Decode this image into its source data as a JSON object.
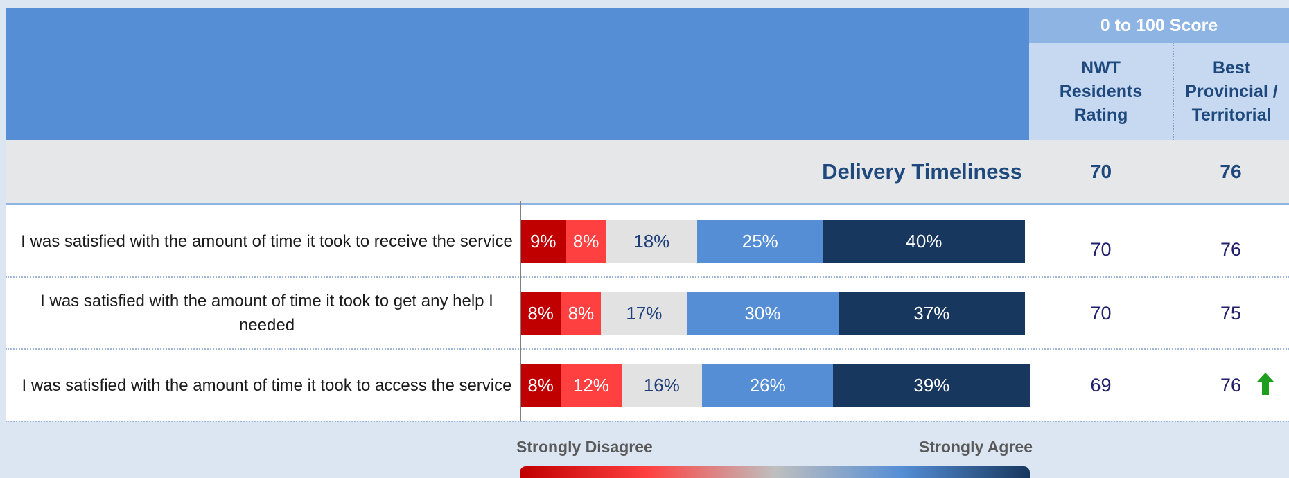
{
  "chart_data": {
    "type": "bar",
    "orientation": "horizontal",
    "stacked": true,
    "section_title": "Delivery Timeliness",
    "score_header": "0 to 100 Score",
    "score_columns": [
      "NWT Residents Rating",
      "Best Provincial / Territorial"
    ],
    "section_scores": [
      70,
      76
    ],
    "categories": [
      "I was satisfied with the amount of time it took to receive the service",
      "I was satisfied with the amount of time it took to get any help I needed",
      "I was satisfied with the amount of time it took to access the service"
    ],
    "xlim": [
      0,
      100
    ],
    "series": [
      {
        "color": "#c00000",
        "label_color": "#ffffff",
        "values": [
          9,
          8,
          8
        ],
        "value_labels": [
          "9%",
          "8%",
          "8%"
        ]
      },
      {
        "color": "#ff4040",
        "label_color": "#ffffff",
        "values": [
          8,
          8,
          12
        ],
        "value_labels": [
          "8%",
          "8%",
          "12%"
        ]
      },
      {
        "color": "#e2e2e2",
        "label_color": "#1f3f7a",
        "values": [
          18,
          17,
          16
        ],
        "value_labels": [
          "18%",
          "17%",
          "16%"
        ]
      },
      {
        "color": "#558ed5",
        "label_color": "#ffffff",
        "values": [
          25,
          30,
          26
        ],
        "value_labels": [
          "25%",
          "30%",
          "26%"
        ]
      },
      {
        "color": "#17375e",
        "label_color": "#ffffff",
        "values": [
          40,
          37,
          39
        ],
        "value_labels": [
          "40%",
          "37%",
          "39%"
        ]
      }
    ],
    "nwt_scores": [
      70,
      70,
      69
    ],
    "best_scores": [
      76,
      75,
      76
    ],
    "best_trend": [
      null,
      null,
      "up"
    ],
    "legend_labels": [
      "Strongly Disagree",
      "Strongly Agree"
    ]
  }
}
